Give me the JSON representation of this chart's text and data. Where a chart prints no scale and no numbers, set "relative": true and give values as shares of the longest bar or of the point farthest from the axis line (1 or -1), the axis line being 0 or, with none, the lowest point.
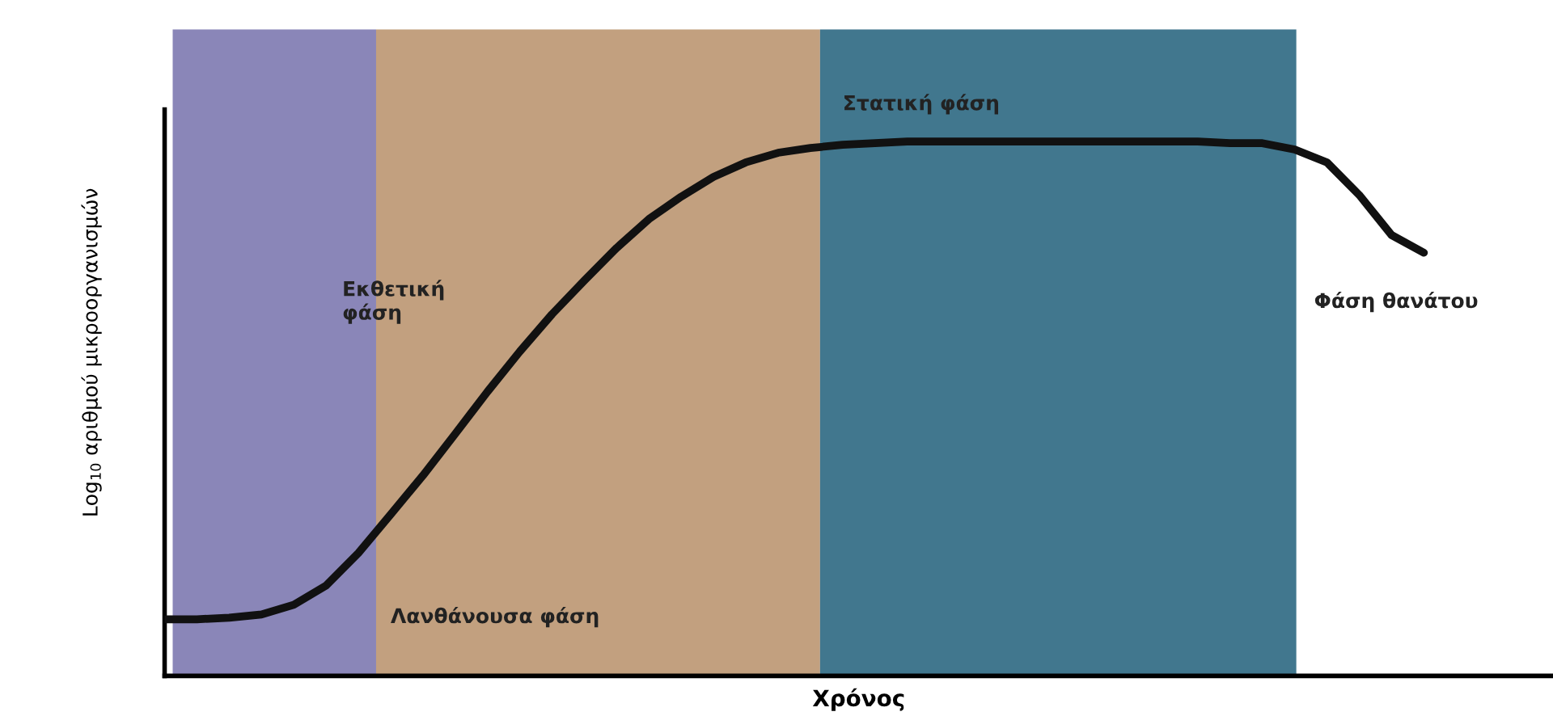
{
  "chart_data": {
    "type": "line",
    "relative": true,
    "xlabel": "Χρόνος",
    "ylabel": "Log$_{10}$ αριθμού μικροοργανισμών",
    "categories": [
      null,
      null,
      null,
      null,
      null,
      null,
      null,
      null,
      null,
      null,
      null,
      null,
      null,
      null,
      null,
      null,
      null,
      null,
      null,
      null,
      null,
      null,
      null,
      null,
      null,
      null,
      null,
      null,
      null,
      null,
      null,
      null,
      null,
      null,
      null,
      null,
      null,
      null,
      null,
      null,
      null,
      null,
      null,
      null
    ],
    "series": [
      {
        "color": "#111111",
        "values": [
          0.106,
          0.106,
          0.109,
          0.115,
          0.133,
          0.169,
          0.23,
          0.302,
          0.375,
          0.453,
          0.532,
          0.607,
          0.677,
          0.74,
          0.801,
          0.855,
          0.897,
          0.934,
          0.961,
          0.979,
          0.988,
          0.994,
          0.997,
          1.0,
          1.0,
          1.0,
          1.0,
          1.0,
          1.0,
          1.0,
          1.0,
          1.0,
          1.0,
          0.997,
          0.997,
          0.985,
          0.961,
          0.9,
          0.825,
          0.792,
          null,
          null,
          null,
          null
        ]
      }
    ],
    "annotations": [
      "Λανθάνουσα φάση",
      "Εκθετική\nφάση",
      "Στατική φάση",
      "Φάση θανάτου"
    ],
    "marker": "none",
    "line_style": "solid",
    "grid": false
  }
}
